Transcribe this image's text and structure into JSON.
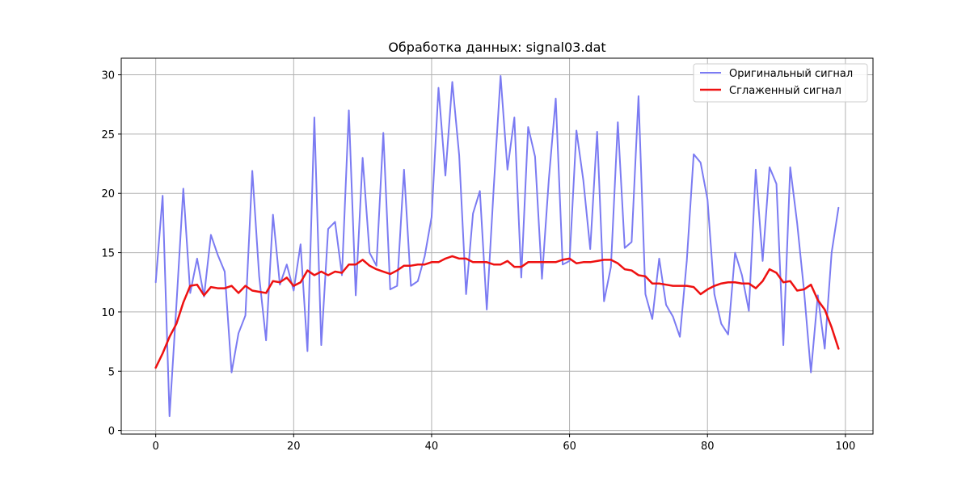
{
  "chart_data": {
    "type": "line",
    "title": "Обработка данных: signal03.dat",
    "xlabel": "",
    "ylabel": "",
    "xlim": [
      -5,
      104
    ],
    "ylim": [
      -0.3,
      31.4
    ],
    "xticks": [
      0,
      20,
      40,
      60,
      80,
      100
    ],
    "yticks": [
      0,
      5,
      10,
      15,
      20,
      25,
      30
    ],
    "grid": true,
    "legend_position": "top-right",
    "series": [
      {
        "name": "Оригинальный сигнал",
        "color": "#7b7bf2",
        "x": [
          0,
          1,
          2,
          3,
          4,
          5,
          6,
          7,
          8,
          9,
          10,
          11,
          12,
          13,
          14,
          15,
          16,
          17,
          18,
          19,
          20,
          21,
          22,
          23,
          24,
          25,
          26,
          27,
          28,
          29,
          30,
          31,
          32,
          33,
          34,
          35,
          36,
          37,
          38,
          39,
          40,
          41,
          42,
          43,
          44,
          45,
          46,
          47,
          48,
          49,
          50,
          51,
          52,
          53,
          54,
          55,
          56,
          57,
          58,
          59,
          60,
          61,
          62,
          63,
          64,
          65,
          66,
          67,
          68,
          69,
          70,
          71,
          72,
          73,
          74,
          75,
          76,
          77,
          78,
          79,
          80,
          81,
          82,
          83,
          84,
          85,
          86,
          87,
          88,
          89,
          90,
          91,
          92,
          93,
          94,
          95,
          96,
          97,
          98,
          99
        ],
        "values": [
          12.5,
          19.8,
          1.2,
          10.6,
          20.4,
          11.6,
          14.5,
          11.3,
          16.5,
          14.8,
          13.4,
          4.9,
          8.2,
          9.7,
          21.9,
          13.0,
          7.6,
          18.2,
          12.3,
          14.0,
          11.8,
          15.7,
          6.7,
          26.4,
          7.2,
          17.0,
          17.6,
          13.1,
          27.0,
          11.4,
          23.0,
          15.0,
          13.9,
          25.1,
          11.9,
          12.2,
          22.0,
          12.2,
          12.6,
          14.7,
          18.0,
          28.9,
          21.5,
          29.4,
          23.2,
          11.5,
          18.3,
          20.2,
          10.2,
          20.4,
          29.9,
          22.0,
          26.4,
          12.9,
          25.6,
          23.1,
          12.8,
          21.2,
          28.0,
          14.0,
          14.3,
          25.3,
          21.1,
          15.3,
          25.2,
          10.9,
          13.8,
          26.0,
          15.4,
          15.9,
          28.2,
          11.5,
          9.4,
          14.5,
          10.6,
          9.6,
          7.9,
          14.3,
          23.3,
          22.6,
          19.5,
          11.5,
          9.0,
          8.1,
          15.0,
          13.1,
          10.1,
          22.0,
          14.3,
          22.2,
          20.8,
          7.2,
          22.2,
          17.5,
          11.8,
          4.9,
          11.4,
          6.9,
          15.0,
          18.8
        ]
      },
      {
        "name": "Сглаженный сигнал",
        "color": "#ee1111",
        "x": [
          0,
          1,
          2,
          3,
          4,
          5,
          6,
          7,
          8,
          9,
          10,
          11,
          12,
          13,
          14,
          15,
          16,
          17,
          18,
          19,
          20,
          21,
          22,
          23,
          24,
          25,
          26,
          27,
          28,
          29,
          30,
          31,
          32,
          33,
          34,
          35,
          36,
          37,
          38,
          39,
          40,
          41,
          42,
          43,
          44,
          45,
          46,
          47,
          48,
          49,
          50,
          51,
          52,
          53,
          54,
          55,
          56,
          57,
          58,
          59,
          60,
          61,
          62,
          63,
          64,
          65,
          66,
          67,
          68,
          69,
          70,
          71,
          72,
          73,
          74,
          75,
          76,
          77,
          78,
          79,
          80,
          81,
          82,
          83,
          84,
          85,
          86,
          87,
          88,
          89,
          90,
          91,
          92,
          93,
          94,
          95,
          96,
          97,
          98,
          99
        ],
        "values": [
          5.3,
          6.5,
          7.9,
          9.0,
          10.8,
          12.2,
          12.3,
          11.4,
          12.1,
          12.0,
          12.0,
          12.2,
          11.6,
          12.2,
          11.8,
          11.7,
          11.6,
          12.6,
          12.5,
          12.9,
          12.2,
          12.5,
          13.5,
          13.1,
          13.4,
          13.1,
          13.4,
          13.3,
          14.0,
          14.0,
          14.4,
          13.9,
          13.6,
          13.4,
          13.2,
          13.5,
          13.9,
          13.9,
          14.0,
          14.0,
          14.2,
          14.2,
          14.5,
          14.7,
          14.5,
          14.5,
          14.2,
          14.2,
          14.2,
          14.0,
          14.0,
          14.3,
          13.8,
          13.8,
          14.2,
          14.2,
          14.2,
          14.2,
          14.2,
          14.4,
          14.5,
          14.1,
          14.2,
          14.2,
          14.3,
          14.4,
          14.4,
          14.1,
          13.6,
          13.5,
          13.1,
          13.0,
          12.4,
          12.4,
          12.3,
          12.2,
          12.2,
          12.2,
          12.1,
          11.5,
          11.9,
          12.2,
          12.4,
          12.5,
          12.5,
          12.4,
          12.4,
          12.0,
          12.6,
          13.6,
          13.3,
          12.5,
          12.6,
          11.8,
          11.9,
          12.3,
          11.0,
          10.2,
          8.7,
          6.9
        ]
      }
    ]
  }
}
